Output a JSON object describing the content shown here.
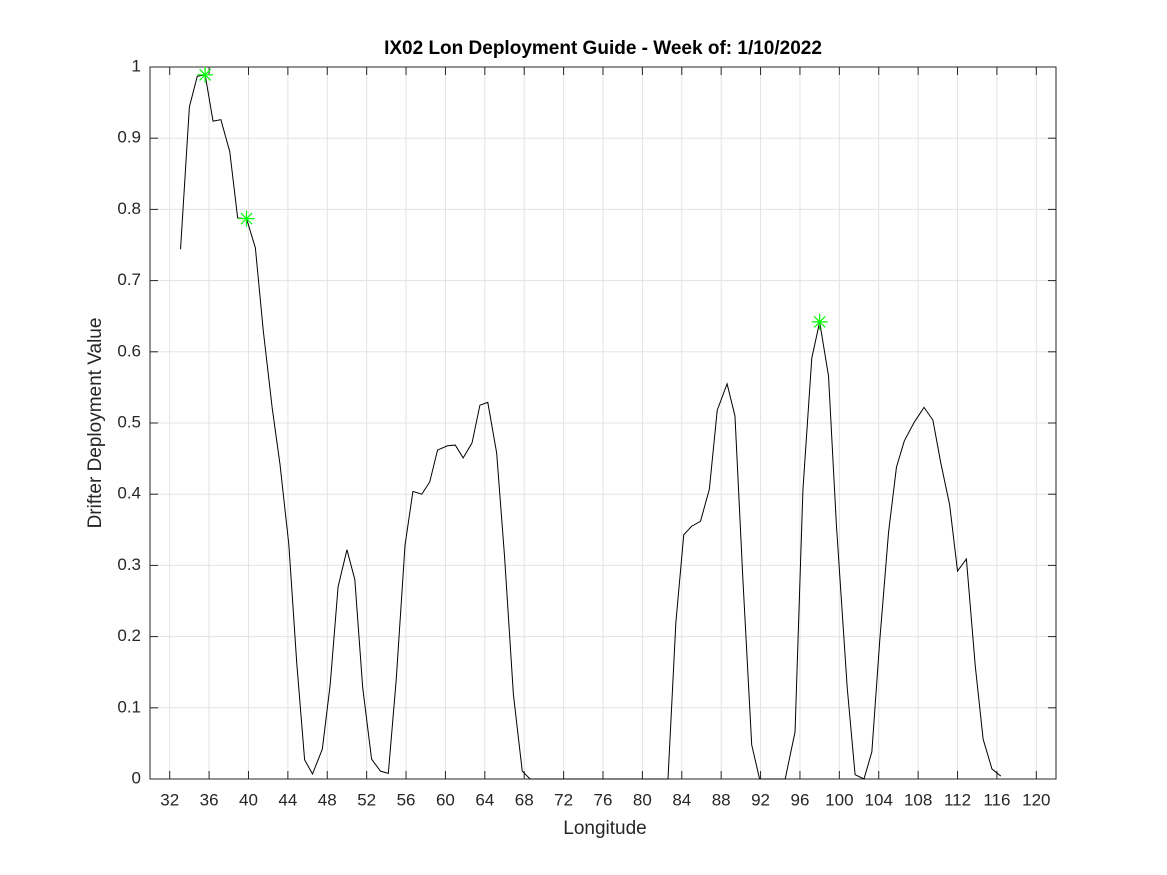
{
  "chart_data": {
    "type": "line",
    "title": "IX02 Lon Deployment Guide - Week of: 1/10/2022",
    "x_label": "Longitude",
    "y_label": "Drifter Deployment Value",
    "xlim": [
      30,
      122
    ],
    "ylim": [
      0,
      1
    ],
    "xticks": [
      32,
      36,
      40,
      44,
      48,
      52,
      56,
      60,
      64,
      68,
      72,
      76,
      80,
      84,
      88,
      92,
      96,
      100,
      104,
      108,
      112,
      116,
      120
    ],
    "yticks": [
      0,
      0.1,
      0.2,
      0.3,
      0.4,
      0.5,
      0.6,
      0.7,
      0.8,
      0.9,
      1
    ],
    "grid": true,
    "x": [
      33.1,
      34.0,
      34.8,
      35.6,
      36.4,
      37.2,
      38.1,
      38.9,
      39.8,
      40.7,
      41.5,
      42.4,
      43.2,
      44.1,
      44.9,
      45.7,
      46.5,
      47.5,
      48.3,
      49.1,
      50.0,
      50.8,
      51.6,
      52.5,
      53.4,
      54.2,
      55.0,
      55.9,
      56.7,
      57.6,
      58.4,
      59.2,
      60.2,
      61.0,
      61.8,
      62.7,
      63.5,
      64.3,
      65.2,
      66.0,
      66.9,
      67.8,
      68.6,
      69.4,
      70.3,
      71.1,
      71.9,
      72.8,
      73.6,
      74.4,
      75.3,
      76.1,
      76.9,
      77.8,
      78.6,
      79.4,
      80.3,
      81.1,
      81.9,
      82.6,
      83.4,
      84.2,
      85.0,
      85.9,
      86.8,
      87.6,
      88.6,
      89.4,
      90.2,
      91.1,
      91.9,
      92.7,
      93.6,
      94.5,
      95.5,
      96.3,
      97.2,
      98.0,
      98.9,
      99.7,
      100.8,
      101.6,
      102.5,
      103.3,
      104.1,
      105.0,
      105.8,
      106.6,
      107.6,
      108.6,
      109.5,
      110.3,
      111.2,
      112.0,
      112.9,
      113.8,
      114.6,
      115.5,
      116.4
    ],
    "series": [
      {
        "color": "#000000",
        "values": [
          0.744,
          0.944,
          0.987,
          0.989,
          0.924,
          0.926,
          0.881,
          0.788,
          0.787,
          0.746,
          0.63,
          0.522,
          0.442,
          0.329,
          0.163,
          0.027,
          0.007,
          0.042,
          0.133,
          0.27,
          0.322,
          0.28,
          0.128,
          0.028,
          0.011,
          0.008,
          0.139,
          0.329,
          0.404,
          0.4,
          0.417,
          0.462,
          0.468,
          0.469,
          0.451,
          0.472,
          0.525,
          0.529,
          0.458,
          0.313,
          0.119,
          0.011,
          0,
          0,
          0,
          0,
          0,
          0,
          0,
          0,
          0,
          0,
          0,
          0,
          0,
          0,
          0,
          0,
          0,
          0,
          0.22,
          0.343,
          0.355,
          0.362,
          0.407,
          0.518,
          0.555,
          0.51,
          0.282,
          0.048,
          0,
          0,
          0,
          0,
          0.066,
          0.406,
          0.591,
          0.642,
          0.566,
          0.357,
          0.128,
          0.006,
          0,
          0.038,
          0.194,
          0.347,
          0.438,
          0.475,
          0.501,
          0.522,
          0.504,
          0.444,
          0.385,
          0.292,
          0.309,
          0.159,
          0.056,
          0.014,
          0.004
        ]
      }
    ],
    "highlights": {
      "color": "#00ff00",
      "x": [
        35.6,
        39.8,
        98.0
      ],
      "values": [
        0.989,
        0.787,
        0.642
      ]
    }
  }
}
